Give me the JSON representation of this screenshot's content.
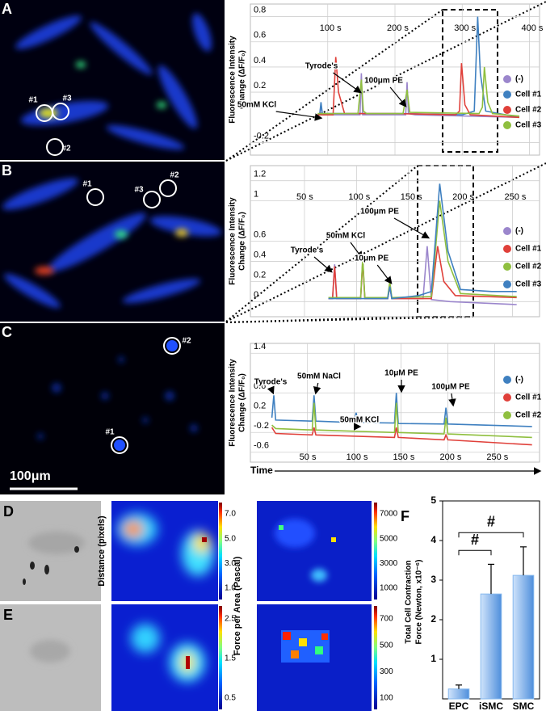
{
  "panel_labels": [
    "A",
    "B",
    "C",
    "D",
    "E",
    "F"
  ],
  "micrographs": {
    "A_cells": [
      "#1",
      "#3",
      "#2"
    ],
    "B_cells": [
      "#1",
      "#3",
      "#2"
    ],
    "C_cells": [
      "#2",
      "#1"
    ],
    "scale_bar": "100μm"
  },
  "heatmaps": {
    "distance_label": "Distance (pixels)",
    "force_label": "Force per Area (Pascal)",
    "colorbars": [
      [
        "7.0",
        "5.0",
        "3.0",
        "1.0"
      ],
      [
        "7000",
        "5000",
        "3000",
        "1000"
      ],
      [
        "2.5",
        "1.5",
        "0.5"
      ],
      [
        "700",
        "500",
        "300",
        "100"
      ]
    ]
  },
  "time_label": "Time",
  "chart_data": [
    {
      "type": "line",
      "ylabel": [
        "Fluorescence Intensity",
        "Change (ΔF/F₀)"
      ],
      "xlim": [
        -15,
        415
      ],
      "ylim": [
        -0.3,
        0.9
      ],
      "xticks": [
        {
          "value": 100,
          "label": "100 s"
        },
        {
          "value": 200,
          "label": "200 s"
        },
        {
          "value": 300,
          "label": "300 s"
        },
        {
          "value": 400,
          "label": "400 s"
        }
      ],
      "yticks": [
        -0.2,
        0.2,
        0.4,
        0.6,
        0.8
      ],
      "grid": true,
      "annotations": [
        "50mM KCl",
        "Tyrode's",
        "100μm PE"
      ],
      "series": [
        {
          "name": "(-)",
          "color": "#9b86cc",
          "x": [
            85,
            88,
            90,
            92,
            100,
            145,
            148,
            150,
            152,
            160,
            213,
            216,
            218,
            220,
            230,
            385
          ],
          "values": [
            0.02,
            0.02,
            0.1,
            0.02,
            0.02,
            0.02,
            0.02,
            0.35,
            0.02,
            0.02,
            0.02,
            0.02,
            0.28,
            0.03,
            0.02,
            0.0
          ]
        },
        {
          "name": "Cell #1",
          "color": "#3f80c0",
          "x": [
            85,
            88,
            90,
            92,
            150,
            210,
            300,
            318,
            323,
            327,
            335,
            385
          ],
          "values": [
            0.02,
            0.02,
            0.12,
            0.03,
            0.03,
            0.03,
            0.02,
            0.05,
            0.8,
            0.35,
            0.05,
            0.0
          ]
        },
        {
          "name": "Cell #2",
          "color": "#e0403a",
          "x": [
            85,
            108,
            112,
            116,
            125,
            200,
            290,
            296,
            299,
            304,
            312,
            385
          ],
          "values": [
            0.02,
            0.02,
            0.48,
            0.2,
            0.03,
            0.03,
            0.02,
            0.05,
            0.43,
            0.1,
            0.02,
            0.0
          ]
        },
        {
          "name": "Cell #3",
          "color": "#8fbf3f",
          "x": [
            85,
            145,
            150,
            153,
            158,
            212,
            218,
            222,
            325,
            330,
            333,
            338,
            345,
            385
          ],
          "values": [
            0.03,
            0.03,
            0.3,
            0.05,
            0.03,
            0.03,
            0.22,
            0.04,
            0.03,
            0.08,
            0.4,
            0.12,
            0.03,
            0.01
          ]
        }
      ]
    },
    {
      "type": "line",
      "ylabel": [
        "Fluorescence Intensity",
        "Change (ΔF/F₀)"
      ],
      "xlim": [
        -2,
        276
      ],
      "ylim": [
        -0.15,
        1.35
      ],
      "xticks": [
        {
          "value": 50,
          "label": "50 s"
        },
        {
          "value": 100,
          "label": "100 s"
        },
        {
          "value": 150,
          "label": "150 s"
        },
        {
          "value": 200,
          "label": "200 s"
        },
        {
          "value": 250,
          "label": "250 s"
        }
      ],
      "yticks": [
        0,
        0.2,
        0.4,
        0.6,
        1.0,
        1.2
      ],
      "grid": true,
      "annotations": [
        "Tyrode's",
        "50mM KCl",
        "10μm PE",
        "100μm PE"
      ],
      "series": [
        {
          "name": "(-)",
          "color": "#9b86cc",
          "x": [
            73,
            77,
            79,
            81,
            104,
            106,
            108,
            130,
            132,
            134,
            164,
            168,
            172,
            190,
            254
          ],
          "values": [
            0.03,
            0.03,
            0.37,
            0.03,
            0.03,
            0.42,
            0.03,
            0.03,
            0.18,
            0.03,
            0.03,
            0.55,
            0.02,
            0.0,
            -0.03
          ]
        },
        {
          "name": "Cell #1",
          "color": "#e0403a",
          "x": [
            73,
            77,
            79,
            81,
            104,
            106,
            108,
            130,
            132,
            134,
            172,
            178,
            184,
            195,
            254
          ],
          "values": [
            0.03,
            0.03,
            0.35,
            0.03,
            0.03,
            0.4,
            0.03,
            0.03,
            0.15,
            0.03,
            0.03,
            0.55,
            0.2,
            0.06,
            0.04
          ]
        },
        {
          "name": "Cell #2",
          "color": "#8fbf3f",
          "x": [
            73,
            104,
            106,
            108,
            130,
            132,
            134,
            172,
            180,
            188,
            200,
            254
          ],
          "values": [
            0.04,
            0.04,
            0.44,
            0.04,
            0.04,
            0.2,
            0.04,
            0.05,
            1.0,
            0.4,
            0.08,
            0.05
          ]
        },
        {
          "name": "Cell #3",
          "color": "#3f80c0",
          "x": [
            73,
            130,
            132,
            134,
            160,
            172,
            180,
            188,
            200,
            230,
            254
          ],
          "values": [
            0.03,
            0.03,
            0.15,
            0.03,
            0.06,
            0.1,
            1.17,
            0.5,
            0.12,
            0.1,
            0.1
          ]
        }
      ]
    },
    {
      "type": "line",
      "ylabel": [
        "Fluorescence Intensity",
        "Change (ΔF/F₀)"
      ],
      "xlim": [
        -11,
        298
      ],
      "ylim": [
        -0.8,
        1.6
      ],
      "xticks": [
        {
          "value": 50,
          "label": "50 s"
        },
        {
          "value": 100,
          "label": "100 s"
        },
        {
          "value": 150,
          "label": "150 s"
        },
        {
          "value": 200,
          "label": "200 s"
        },
        {
          "value": 250,
          "label": "250 s"
        }
      ],
      "yticks": [
        -0.6,
        -0.2,
        0.2,
        0.6,
        1.4
      ],
      "grid": true,
      "annotations": [
        "Tyrode's",
        "50mM NaCl",
        "50mM KCl",
        "10μM PE",
        "100μM PE"
      ],
      "series": [
        {
          "name": "(-)",
          "color": "#3f80c0",
          "x": [
            12,
            14,
            16,
            55,
            57,
            59,
            100,
            102,
            104,
            143,
            145,
            147,
            196,
            198,
            200,
            290
          ],
          "values": [
            0.1,
            0.55,
            0.05,
            0.03,
            0.55,
            0.03,
            0.0,
            0.2,
            0.0,
            -0.01,
            0.6,
            -0.02,
            -0.03,
            0.3,
            -0.03,
            -0.08
          ]
        },
        {
          "name": "Cell #1",
          "color": "#e0403a",
          "x": [
            12,
            16,
            55,
            57,
            59,
            143,
            145,
            147,
            196,
            198,
            200,
            290
          ],
          "values": [
            -0.1,
            -0.22,
            -0.25,
            -0.1,
            -0.25,
            -0.3,
            -0.1,
            -0.3,
            -0.35,
            -0.25,
            -0.35,
            -0.45
          ]
        },
        {
          "name": "Cell #2",
          "color": "#8fbf3f",
          "x": [
            12,
            16,
            55,
            57,
            59,
            143,
            145,
            147,
            196,
            198,
            200,
            290
          ],
          "values": [
            -0.05,
            -0.12,
            -0.15,
            0.4,
            -0.15,
            -0.2,
            0.4,
            -0.2,
            -0.23,
            0.1,
            -0.23,
            -0.3
          ]
        }
      ]
    },
    {
      "type": "bar",
      "categories": [
        "EPC",
        "iSMC",
        "SMC"
      ],
      "values": [
        0.25,
        2.65,
        3.12
      ],
      "errors": [
        0.1,
        0.75,
        0.72
      ],
      "color": "#86b8ee",
      "ylim": [
        0,
        5
      ],
      "yticks": [
        1,
        2,
        3,
        4,
        5
      ],
      "ylabel": [
        "Total Cell Contraction",
        "Force (Newton, x10⁻⁶)"
      ],
      "annotations": [
        "#",
        "#"
      ]
    }
  ]
}
